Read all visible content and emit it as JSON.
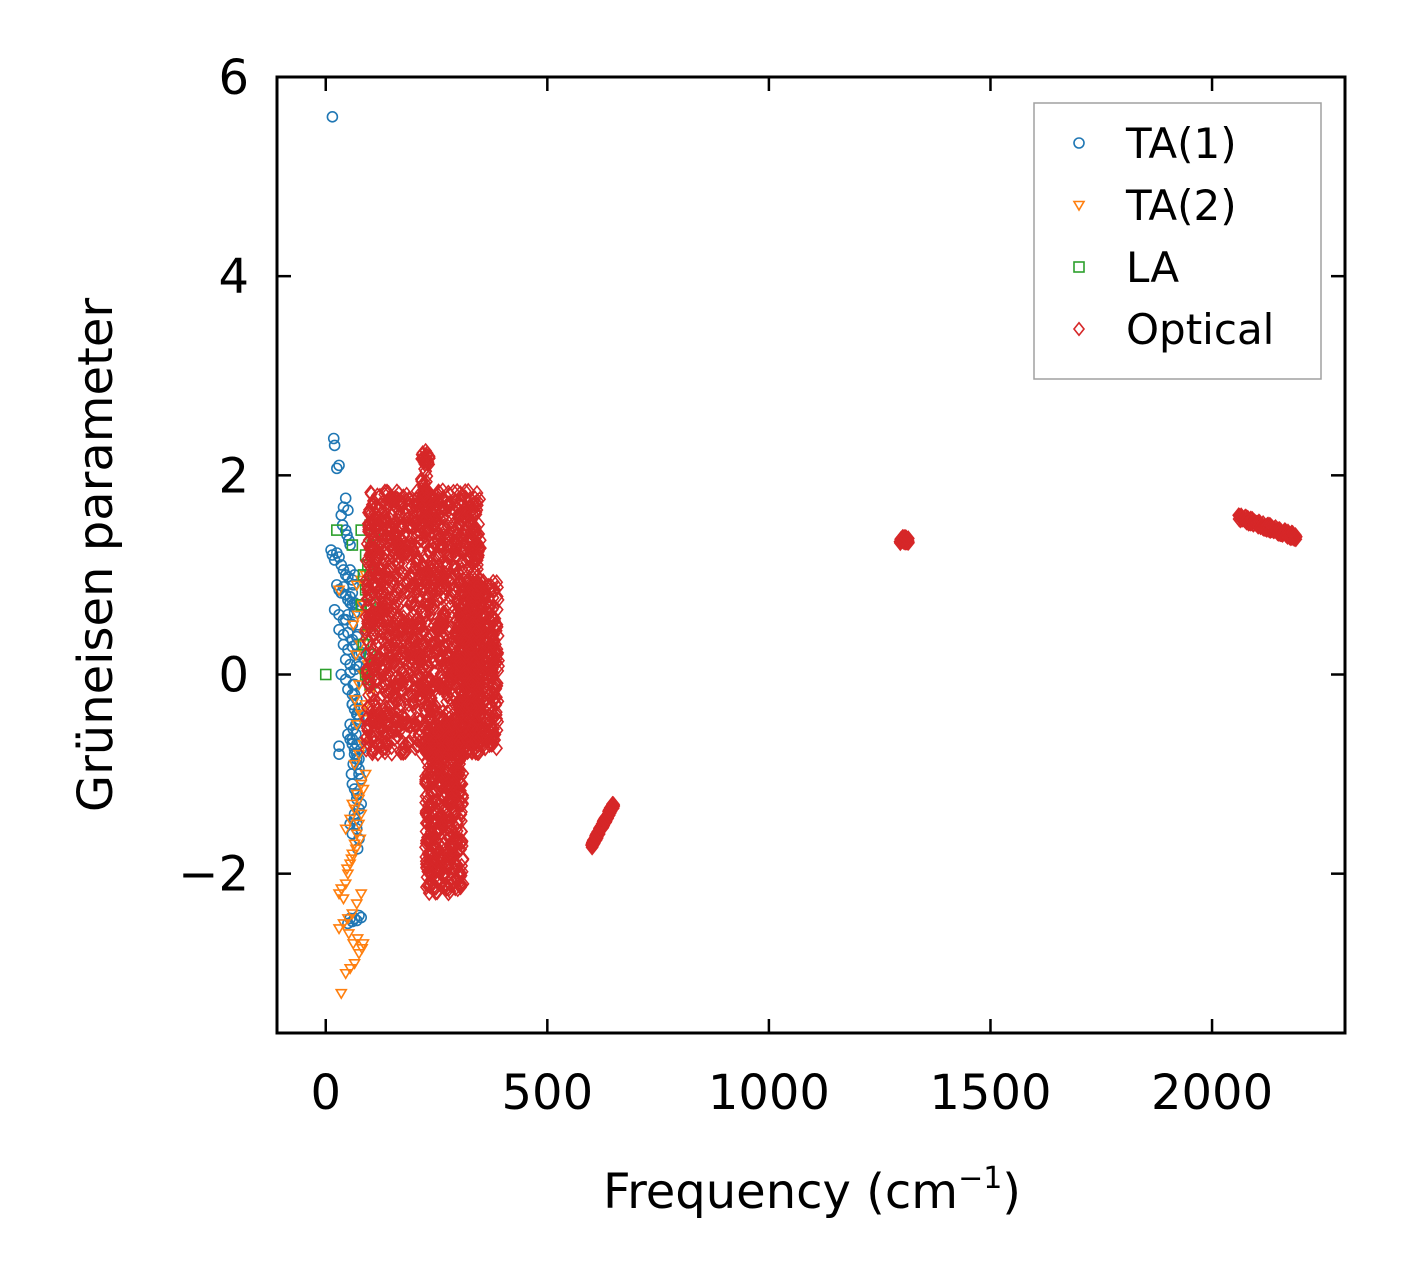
{
  "chart_data": {
    "type": "scatter",
    "title": "",
    "xlabel": "Frequency (cm",
    "xlabel_sup": "−1",
    "xlabel_end": ")",
    "ylabel": "Grüneisen parameter",
    "xlim": [
      -110,
      2300
    ],
    "ylim": [
      -3.6,
      6.0
    ],
    "xticks": [
      0,
      500,
      1000,
      1500,
      2000
    ],
    "xtick_labels": [
      "0",
      "500",
      "1000",
      "1500",
      "2000"
    ],
    "yticks": [
      -2,
      0,
      2,
      4,
      6
    ],
    "ytick_labels": [
      "−2",
      "0",
      "2",
      "4",
      "6"
    ],
    "grid": false,
    "legend_position": "top-right",
    "series": [
      {
        "name": "TA(1)",
        "marker": "circle",
        "color": "#1f77b4",
        "x": [
          15,
          18,
          20,
          25,
          30,
          45,
          35,
          40,
          38,
          50,
          45,
          48,
          52,
          55,
          12,
          15,
          20,
          25,
          30,
          35,
          40,
          45,
          50,
          55,
          60,
          65,
          25,
          30,
          35,
          40,
          45,
          50,
          55,
          60,
          65,
          70,
          20,
          30,
          40,
          50,
          60,
          30,
          40,
          50,
          60,
          70,
          40,
          50,
          60,
          70,
          80,
          45,
          55,
          65,
          75,
          35,
          45,
          55,
          65,
          50,
          60,
          70,
          60,
          65,
          70,
          75,
          55,
          62,
          68,
          60,
          70,
          80,
          65,
          70,
          75,
          50,
          55,
          60,
          65,
          70,
          75,
          60,
          70,
          80,
          55,
          60,
          50,
          55,
          60,
          65,
          70,
          75,
          80,
          70,
          75,
          80,
          65,
          70,
          75,
          65,
          70,
          75,
          72,
          65,
          70,
          60,
          65,
          62,
          70,
          75,
          68,
          72,
          45,
          65,
          55,
          60,
          62,
          58,
          62,
          68,
          72,
          75,
          30,
          30
        ],
        "y": [
          5.6,
          2.37,
          2.3,
          2.07,
          2.1,
          1.77,
          1.6,
          1.68,
          1.5,
          1.65,
          1.45,
          1.4,
          1.35,
          1.3,
          1.25,
          1.2,
          1.15,
          1.22,
          1.18,
          1.1,
          1.05,
          1.0,
          0.98,
          1.05,
          0.95,
          1.0,
          0.9,
          0.85,
          0.82,
          0.88,
          0.8,
          0.75,
          0.78,
          0.7,
          0.72,
          0.68,
          0.65,
          0.6,
          0.55,
          0.6,
          0.5,
          0.45,
          0.4,
          0.42,
          0.35,
          0.38,
          0.3,
          0.25,
          0.28,
          0.2,
          0.22,
          0.15,
          0.1,
          0.05,
          0.08,
          0.0,
          -0.05,
          0.02,
          -0.1,
          -0.15,
          -0.2,
          -0.25,
          -0.3,
          -0.35,
          -0.4,
          -0.45,
          -0.5,
          -0.55,
          -0.6,
          -0.65,
          -0.7,
          -0.75,
          -0.8,
          -0.9,
          -1.0,
          -0.6,
          -0.65,
          -0.7,
          -0.75,
          -0.8,
          -0.85,
          -1.1,
          -1.2,
          -1.3,
          -1.5,
          -1.6,
          -2.5,
          -2.45,
          -2.48,
          -2.45,
          -2.47,
          -2.42,
          -2.44,
          -0.85,
          -0.95,
          -1.05,
          -1.15,
          -1.25,
          -1.35,
          -1.45,
          -1.55,
          -1.65,
          -1.75,
          -1.4,
          -1.5,
          -0.3,
          -0.2,
          -0.1,
          0.1,
          0.2,
          0.3,
          0.4,
          0.55,
          0.62,
          0.72,
          0.82,
          0.9,
          -1.0,
          -0.9,
          -0.5,
          -0.4,
          -0.35,
          -0.8,
          -0.72
        ]
      },
      {
        "name": "TA(2)",
        "marker": "triangle-down",
        "color": "#ff7f0e",
        "x": [
          30,
          35,
          40,
          45,
          50,
          55,
          60,
          65,
          70,
          75,
          80,
          30,
          40,
          50,
          60,
          70,
          80,
          35,
          45,
          55,
          65,
          75,
          85,
          60,
          70,
          80,
          90,
          65,
          75,
          85,
          95,
          70,
          80,
          90,
          100,
          75,
          85,
          95,
          68,
          78,
          88,
          62,
          72,
          82,
          48,
          58,
          68,
          78,
          52,
          62,
          72,
          82,
          66,
          76,
          86,
          30,
          70,
          80,
          90,
          45,
          55,
          65,
          75,
          85
        ],
        "y": [
          -2.2,
          -2.15,
          -2.25,
          -2.1,
          -2.0,
          -1.9,
          -1.8,
          -1.7,
          -1.6,
          -1.5,
          -1.4,
          -2.55,
          -2.5,
          -2.45,
          -2.4,
          -2.3,
          -2.2,
          -3.2,
          -3.0,
          -2.95,
          -2.9,
          -2.8,
          -2.7,
          -1.3,
          -1.2,
          -1.1,
          -1.0,
          -0.9,
          -0.8,
          -0.7,
          -0.6,
          -0.5,
          -0.4,
          -0.3,
          -0.2,
          -0.1,
          0.0,
          0.1,
          0.2,
          0.3,
          0.4,
          0.5,
          0.6,
          0.7,
          -1.95,
          -1.85,
          -1.75,
          -1.65,
          -2.6,
          -2.7,
          -2.65,
          -2.75,
          -0.25,
          -0.35,
          -0.45,
          0.85,
          0.9,
          0.95,
          1.0,
          -1.55,
          -1.45,
          -1.35,
          -1.25,
          -1.15
        ]
      },
      {
        "name": "LA",
        "marker": "square",
        "color": "#2ca02c",
        "x": [
          0,
          25,
          60,
          80,
          100,
          110,
          90,
          105,
          95,
          85,
          100,
          110,
          90,
          80,
          100,
          110,
          95,
          105,
          85,
          100,
          110,
          90,
          95,
          105,
          100,
          110
        ],
        "y": [
          0.0,
          1.45,
          1.3,
          1.45,
          1.5,
          1.4,
          1.2,
          1.3,
          1.1,
          1.0,
          1.0,
          0.9,
          0.85,
          0.7,
          0.7,
          0.6,
          0.5,
          0.4,
          0.3,
          0.2,
          0.1,
          0.0,
          -0.05,
          0.05,
          -0.1,
          0.15
        ]
      },
      {
        "name": "Optical",
        "marker": "diamond",
        "color": "#d62728",
        "clusters": [
          {
            "x_range": [
              90,
              350
            ],
            "y_range": [
              -0.8,
              1.85
            ]
          },
          {
            "x_range": [
              215,
              235
            ],
            "y_range": [
              1.5,
              2.25
            ]
          },
          {
            "x_range": [
              225,
              310
            ],
            "y_range": [
              -2.2,
              -0.5
            ]
          },
          {
            "x_range": [
              300,
              390
            ],
            "y_range": [
              -0.75,
              0.95
            ]
          },
          {
            "x_line": [
              600,
              650
            ],
            "y_line": [
              -1.72,
              -1.3
            ]
          },
          {
            "x_range": [
              1295,
              1315
            ],
            "y_range": [
              1.32,
              1.38
            ]
          },
          {
            "x_line": [
              2060,
              2190
            ],
            "y_line": [
              1.58,
              1.38
            ]
          }
        ]
      }
    ]
  }
}
